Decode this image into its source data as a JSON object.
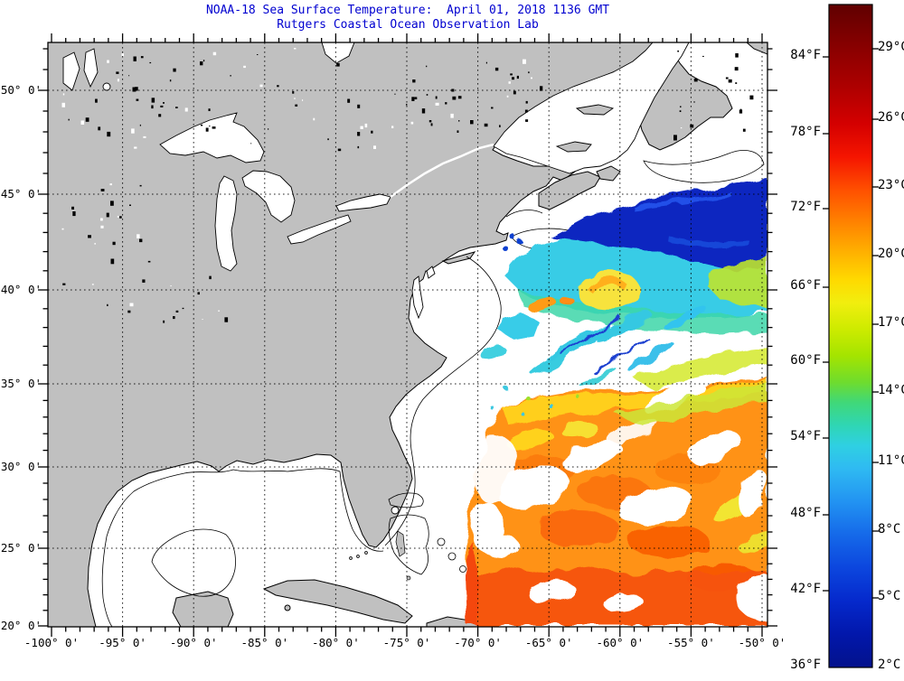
{
  "title": {
    "line1": "NOAA-18 Sea Surface Temperature:  April 01, 2018 1136 GMT",
    "line2": "Rutgers Coastal Ocean Observation Lab"
  },
  "axes": {
    "lat_labels": [
      "50° 0'",
      "45° 0'",
      "40° 0'",
      "35° 0'",
      "30° 0'",
      "25° 0'",
      "20° 0'"
    ],
    "lon_labels": [
      "-100° 0'",
      "-95° 0'",
      "-90° 0'",
      "-85° 0'",
      "-80° 0'",
      "-75° 0'",
      "-70° 0'",
      "-65° 0'",
      "-60° 0'",
      "-55° 0'",
      "-50° 0'"
    ]
  },
  "colorbar": {
    "fahrenheit_labels": [
      "84°F",
      "78°F",
      "72°F",
      "66°F",
      "60°F",
      "54°F",
      "48°F",
      "42°F",
      "36°F"
    ],
    "celsius_labels": [
      "29°C",
      "26°C",
      "23°C",
      "20°C",
      "17°C",
      "14°C",
      "11°C",
      "8°C",
      "5°C",
      "2°C"
    ],
    "gradient_stops": [
      [
        0,
        "#600000"
      ],
      [
        0.06,
        "#860000"
      ],
      [
        0.12,
        "#ab0000"
      ],
      [
        0.18,
        "#d40000"
      ],
      [
        0.23,
        "#f51500"
      ],
      [
        0.28,
        "#ff5000"
      ],
      [
        0.33,
        "#ff8400"
      ],
      [
        0.375,
        "#ffb200"
      ],
      [
        0.415,
        "#ffd900"
      ],
      [
        0.45,
        "#f1ee0e"
      ],
      [
        0.49,
        "#cdeb00"
      ],
      [
        0.53,
        "#a4e400"
      ],
      [
        0.57,
        "#6edc2e"
      ],
      [
        0.6,
        "#40d878"
      ],
      [
        0.635,
        "#2fd6b4"
      ],
      [
        0.665,
        "#2fd0e2"
      ],
      [
        0.7,
        "#2fbaf2"
      ],
      [
        0.75,
        "#2293f2"
      ],
      [
        0.8,
        "#1569e9"
      ],
      [
        0.85,
        "#0c46de"
      ],
      [
        0.9,
        "#0529cc"
      ],
      [
        0.95,
        "#0217ab"
      ],
      [
        1,
        "#03128c"
      ]
    ]
  },
  "colors": {
    "land": "#c0c0c0",
    "ocean": "#ffffff",
    "coastline": "#000000",
    "grid": "#000000",
    "title_text": "#0000d0",
    "label_text": "#000000"
  }
}
